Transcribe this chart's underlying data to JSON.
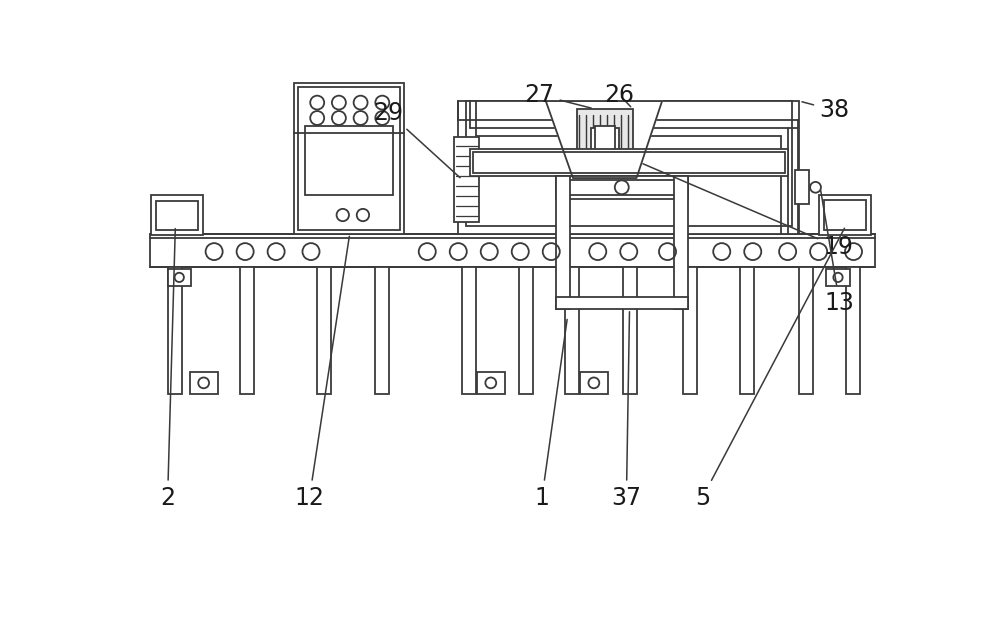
{
  "bg_color": "#ffffff",
  "lc": "#3a3a3a",
  "lw": 1.3,
  "fig_width": 10.0,
  "fig_height": 6.24,
  "label_fontsize": 17
}
